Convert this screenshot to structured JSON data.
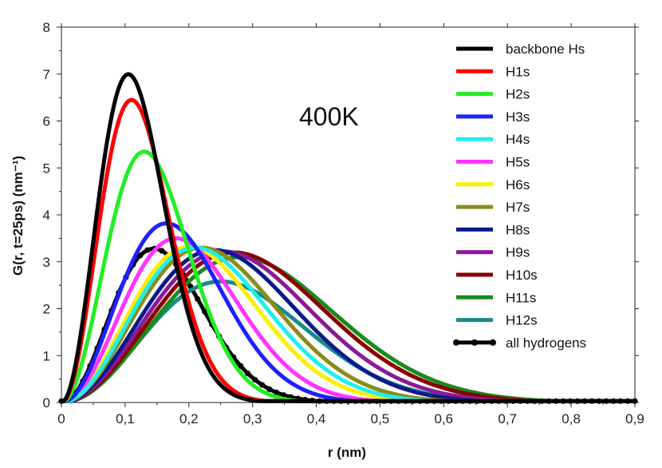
{
  "chart_data": {
    "type": "line",
    "title": "",
    "annotation": "400K",
    "xlabel": "r (nm)",
    "ylabel": "G(r, t=25ps) (nm⁻¹)",
    "xlim": [
      0,
      0.9
    ],
    "ylim": [
      0,
      8
    ],
    "x_ticks": [
      "0",
      "0,1",
      "0,2",
      "0,3",
      "0,4",
      "0,5",
      "0,6",
      "0,7",
      "0,8",
      "0,9"
    ],
    "y_ticks": [
      "0",
      "1",
      "2",
      "3",
      "4",
      "5",
      "6",
      "7",
      "8"
    ],
    "legend_position": "top-right",
    "series": [
      {
        "name": "backbone Hs",
        "color": "#000000",
        "peak_x": 0.105,
        "peak_y": 7.0,
        "sigma": 0.055,
        "markers": false
      },
      {
        "name": "H1s",
        "color": "#ff0000",
        "peak_x": 0.11,
        "peak_y": 6.45,
        "sigma": 0.062,
        "markers": false
      },
      {
        "name": "H2s",
        "color": "#22ee22",
        "peak_x": 0.13,
        "peak_y": 5.35,
        "sigma": 0.075,
        "markers": false
      },
      {
        "name": "H3s",
        "color": "#1f1fff",
        "peak_x": 0.165,
        "peak_y": 3.82,
        "sigma": 0.1,
        "markers": false
      },
      {
        "name": "H4s",
        "color": "#22eeee",
        "peak_x": 0.21,
        "peak_y": 3.3,
        "sigma": 0.115,
        "markers": false
      },
      {
        "name": "H5s",
        "color": "#ff33ff",
        "peak_x": 0.18,
        "peak_y": 3.5,
        "sigma": 0.11,
        "markers": false
      },
      {
        "name": "H6s",
        "color": "#ffee00",
        "peak_x": 0.2,
        "peak_y": 3.32,
        "sigma": 0.12,
        "markers": false
      },
      {
        "name": "H7s",
        "color": "#8b8b1a",
        "peak_x": 0.22,
        "peak_y": 3.3,
        "sigma": 0.12,
        "markers": false
      },
      {
        "name": "H8s",
        "color": "#0a1a8a",
        "peak_x": 0.24,
        "peak_y": 3.25,
        "sigma": 0.125,
        "markers": false
      },
      {
        "name": "H9s",
        "color": "#8a1a9a",
        "peak_x": 0.255,
        "peak_y": 3.22,
        "sigma": 0.125,
        "markers": false
      },
      {
        "name": "H10s",
        "color": "#8a0000",
        "peak_x": 0.27,
        "peak_y": 3.2,
        "sigma": 0.13,
        "markers": false
      },
      {
        "name": "H11s",
        "color": "#1a8a1a",
        "peak_x": 0.28,
        "peak_y": 3.1,
        "sigma": 0.135,
        "markers": false
      },
      {
        "name": "H12s",
        "color": "#1a8a8a",
        "peak_x": 0.25,
        "peak_y": 2.58,
        "sigma": 0.145,
        "markers": false
      },
      {
        "name": "all hydrogens",
        "color": "#000000",
        "peak_x": 0.145,
        "peak_y": 3.28,
        "sigma": 0.13,
        "markers": true
      }
    ]
  }
}
